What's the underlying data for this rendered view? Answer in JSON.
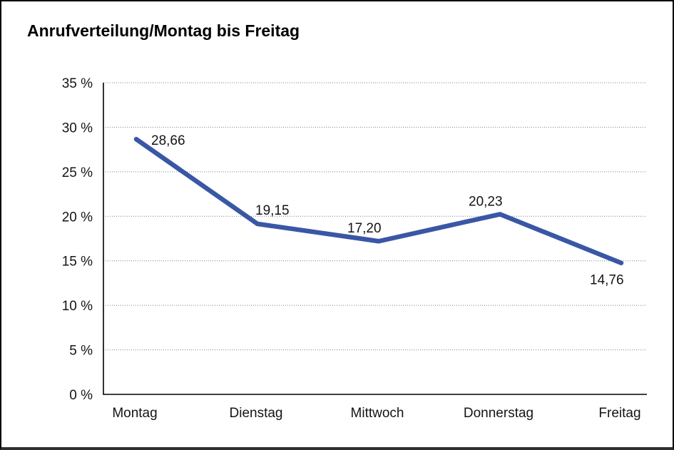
{
  "window": {
    "background": "#ffffff",
    "frame_border_color": "#000000"
  },
  "title": "Anrufverteilung/Montag bis Freitag",
  "chart_data": {
    "type": "line",
    "title": "Anrufverteilung/Montag bis Freitag",
    "categories": [
      "Montag",
      "Dienstag",
      "Mittwoch",
      "Donnerstag",
      "Freitag"
    ],
    "values": [
      28.66,
      19.15,
      17.2,
      20.23,
      14.76
    ],
    "value_labels": [
      "28,66",
      "19,15",
      "17,20",
      "20,23",
      "14,76"
    ],
    "xlabel": "",
    "ylabel": "",
    "ylim": [
      0,
      35
    ],
    "ytick_step": 5,
    "ytick_labels": [
      "0 %",
      "5 %",
      "10 %",
      "15 %",
      "20 %",
      "25 %",
      "30 %",
      "35 %"
    ],
    "grid": "horizontal-dotted",
    "legend": "none",
    "line_color": "#3A57A5",
    "grid_color": "#7f7f7f",
    "axis_color": "#000000",
    "text_color": "#141414"
  }
}
